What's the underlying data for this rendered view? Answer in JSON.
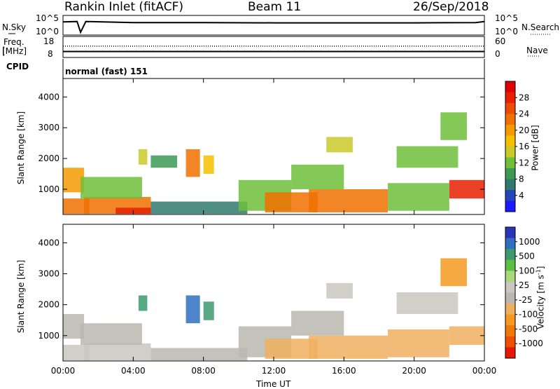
{
  "header": {
    "station": "Rankin Inlet (fitACF)",
    "beam": "Beam 11",
    "date": "26/Sep/2018"
  },
  "noise_panel": {
    "left_label": "N.Sky",
    "right_label": "N.Search",
    "left_ticks": [
      "10^5",
      "10^0"
    ],
    "right_ticks": [
      "10^5",
      "10^0"
    ],
    "left_line_style": "solid",
    "right_line_style": "dotted"
  },
  "freq_panel": {
    "left_label_1": "Freq.",
    "left_label_2": "[MHz]",
    "right_label": "Nave",
    "left_ticks": [
      "18",
      "8"
    ],
    "right_ticks": [
      "60",
      "0"
    ],
    "left_line_style": "solid",
    "right_line_style": "dotted"
  },
  "cpid_panel": {
    "label": "CPID",
    "mode": "normal (fast) 151"
  },
  "colorbars": {
    "power": {
      "label": "Power [dB]",
      "ticks": [
        "28",
        "24",
        "20",
        "16",
        "12",
        "8",
        "4"
      ],
      "colors": [
        "#1a1aff",
        "#2346b8",
        "#2f7a6e",
        "#3c9a55",
        "#6fbf3a",
        "#c9c92a",
        "#f5c000",
        "#f59a00",
        "#f07000",
        "#ee4a00",
        "#e82000",
        "#e00000"
      ]
    },
    "velocity": {
      "label": "Velocity [m s",
      "label_sup": "-1",
      "label_end": "]",
      "ticks": [
        "1000",
        "500",
        "100",
        "25",
        "-25",
        "-100",
        "-500",
        "-1000"
      ],
      "colors": [
        "#2b34b8",
        "#2f6fc0",
        "#3c9a6e",
        "#5cc040",
        "#a8d878",
        "#c8c8c0",
        "#b8b8b0",
        "#f0b060",
        "#f59a20",
        "#f07808",
        "#ee5000",
        "#e81800"
      ]
    }
  },
  "axes": {
    "ylabel": "Slant Range [km]",
    "xlabel": "Time UT",
    "yticks": [
      "4000",
      "3000",
      "2000",
      "1000"
    ],
    "xticks": [
      "00:00",
      "04:00",
      "08:00",
      "12:00",
      "16:00",
      "20:00",
      "00:00"
    ]
  },
  "chart_data": [
    {
      "type": "line",
      "title": "N.Sky / N.Search",
      "x_range_hours": [
        0,
        24
      ],
      "ylim_log10": [
        0,
        5
      ],
      "series": [
        {
          "name": "N.Sky",
          "x": [
            0,
            0.8,
            1.0,
            1.3,
            4,
            8,
            12,
            16,
            20,
            23.5,
            24
          ],
          "y_log10": [
            3.5,
            3.6,
            0.4,
            3.6,
            3.3,
            3.3,
            3.2,
            3.2,
            3.2,
            3.3,
            3.6
          ]
        }
      ]
    },
    {
      "type": "line",
      "title": "Freq. / Nave",
      "x_range_hours": [
        0,
        24
      ],
      "series": [
        {
          "name": "Freq.",
          "x": [
            0,
            24
          ],
          "y": [
            10.5,
            10.5
          ]
        },
        {
          "name": "Nave",
          "x": [
            0,
            24
          ],
          "y": [
            33,
            33
          ]
        }
      ]
    },
    {
      "type": "heatmap",
      "title": "Power [dB]",
      "x_unit": "hours UT",
      "y_unit": "km",
      "xlim": [
        0,
        24
      ],
      "ylim": [
        180,
        4600
      ],
      "clim": [
        0,
        30
      ],
      "regions": [
        {
          "t0": 0.0,
          "t1": 1.2,
          "r0": 900,
          "r1": 1700,
          "v": 18
        },
        {
          "t0": 0.0,
          "t1": 1.5,
          "r0": 200,
          "r1": 700,
          "v": 22
        },
        {
          "t0": 1.2,
          "t1": 5.0,
          "r0": 200,
          "r1": 750,
          "v": 20
        },
        {
          "t0": 3.0,
          "t1": 5.0,
          "r0": 200,
          "r1": 400,
          "v": 26
        },
        {
          "t0": 1.0,
          "t1": 4.5,
          "r0": 700,
          "r1": 1400,
          "v": 10
        },
        {
          "t0": 4.3,
          "t1": 4.8,
          "r0": 1800,
          "r1": 2300,
          "v": 14
        },
        {
          "t0": 5.0,
          "t1": 6.5,
          "r0": 1700,
          "r1": 2100,
          "v": 8
        },
        {
          "t0": 7.0,
          "t1": 7.8,
          "r0": 1400,
          "r1": 2300,
          "v": 22
        },
        {
          "t0": 8.0,
          "t1": 8.6,
          "r0": 1500,
          "r1": 2100,
          "v": 16
        },
        {
          "t0": 5.0,
          "t1": 10.5,
          "r0": 200,
          "r1": 600,
          "v": 6
        },
        {
          "t0": 10.0,
          "t1": 13.0,
          "r0": 300,
          "r1": 1300,
          "v": 12
        },
        {
          "t0": 11.5,
          "t1": 14.5,
          "r0": 250,
          "r1": 900,
          "v": 22
        },
        {
          "t0": 14.0,
          "t1": 18.5,
          "r0": 250,
          "r1": 1000,
          "v": 20
        },
        {
          "t0": 13.0,
          "t1": 16.0,
          "r0": 1000,
          "r1": 1800,
          "v": 10
        },
        {
          "t0": 15.0,
          "t1": 16.5,
          "r0": 2200,
          "r1": 2700,
          "v": 14
        },
        {
          "t0": 18.5,
          "t1": 22.0,
          "r0": 300,
          "r1": 1200,
          "v": 12
        },
        {
          "t0": 19.0,
          "t1": 22.5,
          "r0": 1700,
          "r1": 2400,
          "v": 12
        },
        {
          "t0": 21.5,
          "t1": 23.0,
          "r0": 2600,
          "r1": 3500,
          "v": 12
        },
        {
          "t0": 22.0,
          "t1": 24.0,
          "r0": 700,
          "r1": 1300,
          "v": 26
        }
      ]
    },
    {
      "type": "heatmap",
      "title": "Velocity [m s-1]",
      "x_unit": "hours UT",
      "y_unit": "km",
      "xlim": [
        0,
        24
      ],
      "ylim": [
        180,
        4600
      ],
      "clim": [
        -1000,
        1000
      ],
      "regions": [
        {
          "t0": 0.0,
          "t1": 1.2,
          "r0": 900,
          "r1": 1700,
          "v": -40
        },
        {
          "t0": 0.0,
          "t1": 1.5,
          "r0": 200,
          "r1": 700,
          "v": 60
        },
        {
          "t0": 1.2,
          "t1": 5.0,
          "r0": 200,
          "r1": 750,
          "v": 0
        },
        {
          "t0": 1.0,
          "t1": 4.5,
          "r0": 700,
          "r1": 1400,
          "v": -10
        },
        {
          "t0": 4.3,
          "t1": 4.8,
          "r0": 1800,
          "r1": 2300,
          "v": 600
        },
        {
          "t0": 7.0,
          "t1": 7.8,
          "r0": 1400,
          "r1": 2300,
          "v": 700
        },
        {
          "t0": 8.0,
          "t1": 8.6,
          "r0": 1500,
          "r1": 2100,
          "v": 650
        },
        {
          "t0": 5.0,
          "t1": 10.5,
          "r0": 200,
          "r1": 600,
          "v": -80
        },
        {
          "t0": 10.0,
          "t1": 13.0,
          "r0": 300,
          "r1": 1300,
          "v": -150
        },
        {
          "t0": 11.5,
          "t1": 14.5,
          "r0": 250,
          "r1": 900,
          "v": -300
        },
        {
          "t0": 14.0,
          "t1": 18.5,
          "r0": 250,
          "r1": 1000,
          "v": -250
        },
        {
          "t0": 13.0,
          "t1": 16.0,
          "r0": 1000,
          "r1": 1800,
          "v": -20
        },
        {
          "t0": 15.0,
          "t1": 16.5,
          "r0": 2200,
          "r1": 2700,
          "v": 0
        },
        {
          "t0": 18.5,
          "t1": 22.0,
          "r0": 300,
          "r1": 1200,
          "v": -200
        },
        {
          "t0": 19.0,
          "t1": 22.5,
          "r0": 1700,
          "r1": 2400,
          "v": 50
        },
        {
          "t0": 21.5,
          "t1": 23.0,
          "r0": 2600,
          "r1": 3500,
          "v": -400
        },
        {
          "t0": 22.0,
          "t1": 24.0,
          "r0": 700,
          "r1": 1300,
          "v": -300
        }
      ]
    }
  ]
}
